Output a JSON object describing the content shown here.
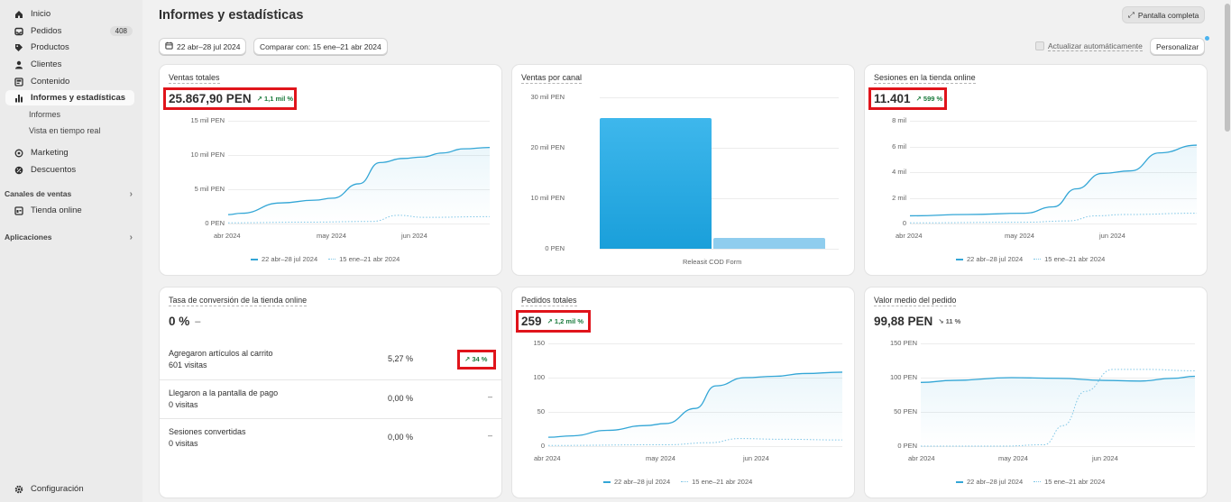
{
  "sidebar": {
    "items": [
      {
        "label": "Inicio",
        "icon": "home-icon"
      },
      {
        "label": "Pedidos",
        "icon": "inbox-icon",
        "badge": "408"
      },
      {
        "label": "Productos",
        "icon": "tag-icon"
      },
      {
        "label": "Clientes",
        "icon": "person-icon"
      },
      {
        "label": "Contenido",
        "icon": "content-icon"
      },
      {
        "label": "Informes y estadísticas",
        "icon": "bar-chart-icon"
      }
    ],
    "sub_items": [
      "Informes",
      "Vista en tiempo real"
    ],
    "items2": [
      {
        "label": "Marketing",
        "icon": "target-icon"
      },
      {
        "label": "Descuentos",
        "icon": "discount-icon"
      }
    ],
    "sales_channels_title": "Canales de ventas",
    "online_store": "Tienda online",
    "apps_title": "Aplicaciones",
    "settings": "Configuración"
  },
  "header": {
    "title": "Informes y estadísticas",
    "fullscreen": "Pantalla completa",
    "date_range": "22 abr–28 jul 2024",
    "compare": "Comparar con: 15 ene–21 abr 2024",
    "auto_update": "Actualizar automáticamente",
    "customize": "Personalizar"
  },
  "legend": {
    "current": "22 abr–28 jul 2024",
    "previous": "15 ene–21 abr 2024"
  },
  "cards": {
    "total_sales": {
      "title": "Ventas totales",
      "value": "25.867,90 PEN",
      "delta": "↗ 1,1 mil %"
    },
    "sales_by_channel": {
      "title": "Ventas por canal"
    },
    "sessions": {
      "title": "Sesiones en la tienda online",
      "value": "11.401",
      "delta": "↗ 599 %"
    },
    "conversion": {
      "title": "Tasa de conversión de la tienda online",
      "value": "0 %",
      "dash": "–",
      "rows": [
        {
          "label": "Agregaron artículos al carrito",
          "sub": "601 visitas",
          "pct": "5,27 %",
          "delta": "↗ 34 %"
        },
        {
          "label": "Llegaron a la pantalla de pago",
          "sub": "0 visitas",
          "pct": "0,00 %",
          "delta": "–"
        },
        {
          "label": "Sesiones convertidas",
          "sub": "0 visitas",
          "pct": "0,00 %",
          "delta": "–"
        }
      ]
    },
    "orders": {
      "title": "Pedidos totales",
      "value": "259",
      "delta": "↗ 1,2 mil %"
    },
    "aov": {
      "title": "Valor medio del pedido",
      "value": "99,88 PEN",
      "delta": "↘ 11 %"
    }
  },
  "chart_data": [
    {
      "type": "line",
      "title": "Ventas totales",
      "y_ticks": [
        "15 mil PEN",
        "10 mil PEN",
        "5 mil PEN",
        "0 PEN"
      ],
      "x_ticks": [
        "abr 2024",
        "may 2024",
        "jun 2024"
      ],
      "ylim": [
        0,
        15000
      ],
      "series": [
        {
          "name": "22 abr–28 jul 2024",
          "x": [
            0,
            0.05,
            0.2,
            0.33,
            0.4,
            0.5,
            0.58,
            0.67,
            0.74,
            0.82,
            0.9,
            1.0
          ],
          "values": [
            1300,
            1500,
            3000,
            3400,
            3700,
            5800,
            8900,
            9500,
            9700,
            10300,
            10900,
            11100
          ]
        },
        {
          "name": "15 ene–21 abr 2024",
          "x": [
            0,
            0.3,
            0.55,
            0.65,
            0.75,
            1.0
          ],
          "values": [
            100,
            200,
            300,
            1200,
            900,
            1000
          ]
        }
      ]
    },
    {
      "type": "bar",
      "title": "Ventas por canal",
      "y_ticks": [
        "30 mil PEN",
        "20 mil PEN",
        "10 mil PEN",
        "0 PEN"
      ],
      "ylim": [
        0,
        30000
      ],
      "categories": [
        "Releasit COD Form"
      ],
      "series": [
        {
          "name": "22 abr–28 jul 2024",
          "values": [
            25867.9
          ]
        },
        {
          "name": "15 ene–21 abr 2024",
          "values": [
            2100
          ]
        }
      ]
    },
    {
      "type": "line",
      "title": "Sesiones en la tienda online",
      "y_ticks": [
        "8 mil",
        "6 mil",
        "4 mil",
        "2 mil",
        "0"
      ],
      "x_ticks": [
        "abr 2024",
        "may 2024",
        "jun 2024"
      ],
      "ylim": [
        0,
        8000
      ],
      "series": [
        {
          "name": "22 abr–28 jul 2024",
          "x": [
            0,
            0.2,
            0.4,
            0.5,
            0.58,
            0.67,
            0.77,
            0.87,
            1.0
          ],
          "values": [
            600,
            700,
            800,
            1300,
            2700,
            3900,
            4100,
            5500,
            6100
          ]
        },
        {
          "name": "15 ene–21 abr 2024",
          "x": [
            0,
            0.4,
            0.55,
            0.65,
            0.75,
            1.0
          ],
          "values": [
            50,
            100,
            200,
            600,
            700,
            800
          ]
        }
      ]
    },
    {
      "type": "line",
      "title": "Pedidos totales",
      "y_ticks": [
        "150",
        "100",
        "50",
        "0"
      ],
      "x_ticks": [
        "abr 2024",
        "may 2024",
        "jun 2024"
      ],
      "ylim": [
        0,
        150
      ],
      "series": [
        {
          "name": "22 abr–28 jul 2024",
          "x": [
            0,
            0.08,
            0.2,
            0.33,
            0.4,
            0.5,
            0.57,
            0.67,
            0.77,
            0.87,
            1.0
          ],
          "values": [
            13,
            15,
            23,
            30,
            33,
            55,
            88,
            100,
            102,
            106,
            108
          ]
        },
        {
          "name": "15 ene–21 abr 2024",
          "x": [
            0,
            0.4,
            0.55,
            0.65,
            0.8,
            1.0
          ],
          "values": [
            1,
            2,
            5,
            11,
            10,
            9
          ]
        }
      ]
    },
    {
      "type": "line",
      "title": "Valor medio del pedido",
      "y_ticks": [
        "150 PEN",
        "100 PEN",
        "50 PEN",
        "0 PEN"
      ],
      "x_ticks": [
        "abr 2024",
        "may 2024",
        "jun 2024"
      ],
      "ylim": [
        0,
        150
      ],
      "series": [
        {
          "name": "22 abr–28 jul 2024",
          "x": [
            0,
            0.12,
            0.33,
            0.5,
            0.67,
            0.8,
            0.92,
            1.0
          ],
          "values": [
            93,
            96,
            100,
            99,
            96,
            95,
            99,
            102
          ]
        },
        {
          "name": "15 ene–21 abr 2024",
          "x": [
            0,
            0.3,
            0.45,
            0.52,
            0.6,
            0.7,
            0.82,
            1.0
          ],
          "values": [
            0,
            0,
            2,
            30,
            80,
            112,
            112,
            110
          ]
        }
      ]
    }
  ]
}
